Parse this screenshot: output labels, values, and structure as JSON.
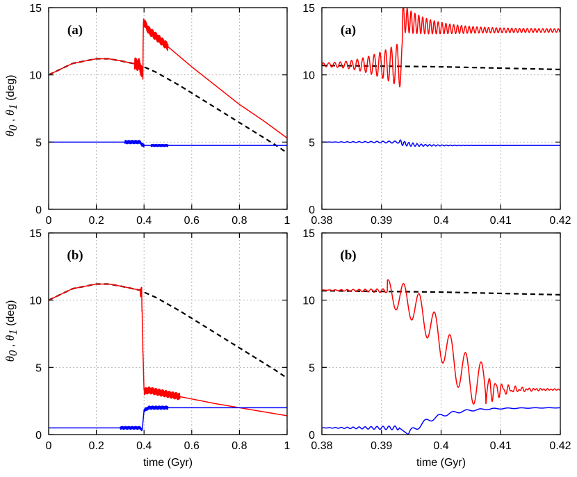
{
  "y_axis_label": {
    "theta": "θ",
    "sub0": "0",
    "sep": " , ",
    "sub1": "1",
    "unit": " (deg)"
  },
  "chart_data": [
    {
      "type": "line",
      "panel_tag": "(a)",
      "xlabel": "",
      "ylim": [
        0,
        15
      ],
      "xlim": [
        0,
        1
      ],
      "xticks": [
        "0",
        "0.2",
        "0.4",
        "0.6",
        "0.8",
        "1"
      ],
      "yticks": [
        "0",
        "5",
        "10",
        "15"
      ],
      "grid": true,
      "series": [
        {
          "color": "#000000",
          "dash": "dashed",
          "x": [
            0,
            0.1,
            0.2,
            0.25,
            0.3,
            0.38,
            0.45,
            0.55,
            0.65,
            0.75,
            0.85,
            0.95,
            1.0
          ],
          "y": [
            10.0,
            10.85,
            11.2,
            11.2,
            11.05,
            10.75,
            10.2,
            9.2,
            8.1,
            7.0,
            5.9,
            4.8,
            4.2
          ]
        },
        {
          "color": "#ff0000",
          "dash": "solid",
          "x": [
            0,
            0.1,
            0.2,
            0.25,
            0.3,
            0.38,
            0.395,
            0.397,
            0.42,
            0.5,
            0.6,
            0.7,
            0.8,
            0.9,
            1.0
          ],
          "y": [
            10.0,
            10.85,
            11.2,
            11.2,
            11.05,
            10.75,
            10.0,
            14.0,
            13.3,
            12.1,
            10.6,
            9.2,
            7.8,
            6.6,
            5.3
          ],
          "oscillate": [
            [
              0.36,
              0.396,
              0.45
            ],
            [
              0.397,
              0.5,
              0.3
            ]
          ]
        },
        {
          "color": "#0000ff",
          "dash": "solid",
          "x": [
            0,
            0.35,
            0.385,
            0.39,
            0.4,
            1.0
          ],
          "y": [
            5.0,
            5.0,
            5.0,
            4.8,
            4.75,
            4.75
          ],
          "oscillate": [
            [
              0.32,
              0.4,
              0.12
            ],
            [
              0.43,
              0.5,
              0.08
            ]
          ]
        }
      ]
    },
    {
      "type": "line",
      "panel_tag": "(a)",
      "xlabel": "",
      "ylim": [
        0,
        15
      ],
      "xlim": [
        0.38,
        0.42
      ],
      "xticks": [
        "0.38",
        "0.39",
        "0.4",
        "0.41",
        "0.42"
      ],
      "yticks": [
        "0",
        "5",
        "10",
        "15"
      ],
      "grid": true,
      "series": [
        {
          "color": "#000000",
          "dash": "dashed",
          "x": [
            0.38,
            0.39,
            0.4,
            0.41,
            0.42
          ],
          "y": [
            10.7,
            10.65,
            10.6,
            10.5,
            10.4
          ]
        },
        {
          "color": "#ff0000",
          "dash": "solid",
          "fn": "a_zoom_red"
        },
        {
          "color": "#0000ff",
          "dash": "solid",
          "fn": "a_zoom_blue"
        }
      ]
    },
    {
      "type": "line",
      "panel_tag": "(b)",
      "xlabel": "time (Gyr)",
      "ylim": [
        0,
        15
      ],
      "xlim": [
        0,
        1
      ],
      "xticks": [
        "0",
        "0.2",
        "0.4",
        "0.6",
        "0.8",
        "1"
      ],
      "yticks": [
        "0",
        "5",
        "10",
        "15"
      ],
      "grid": true,
      "series": [
        {
          "color": "#000000",
          "dash": "dashed",
          "x": [
            0,
            0.1,
            0.2,
            0.25,
            0.3,
            0.38,
            0.45,
            0.55,
            0.65,
            0.75,
            0.85,
            0.95,
            1.0
          ],
          "y": [
            10.0,
            10.85,
            11.2,
            11.2,
            11.05,
            10.75,
            10.2,
            9.2,
            8.1,
            7.0,
            5.9,
            4.8,
            4.2
          ]
        },
        {
          "color": "#ff0000",
          "dash": "solid",
          "x": [
            0,
            0.1,
            0.2,
            0.25,
            0.3,
            0.38,
            0.39,
            0.395,
            0.4,
            0.42,
            0.5,
            0.6,
            0.7,
            0.8,
            0.9,
            1.0
          ],
          "y": [
            10.0,
            10.85,
            11.2,
            11.2,
            11.05,
            10.75,
            10.6,
            6.5,
            3.2,
            3.3,
            3.0,
            2.65,
            2.3,
            2.0,
            1.7,
            1.4
          ],
          "oscillate": [
            [
              0.385,
              0.395,
              0.4
            ],
            [
              0.4,
              0.55,
              0.25
            ]
          ]
        },
        {
          "color": "#0000ff",
          "dash": "solid",
          "x": [
            0,
            0.3,
            0.385,
            0.392,
            0.4,
            0.42,
            1.0
          ],
          "y": [
            0.5,
            0.5,
            0.5,
            0.3,
            1.8,
            2.0,
            2.0
          ],
          "oscillate": [
            [
              0.3,
              0.39,
              0.1
            ],
            [
              0.4,
              0.5,
              0.12
            ]
          ]
        }
      ]
    },
    {
      "type": "line",
      "panel_tag": "(b)",
      "xlabel": "time (Gyr)",
      "ylim": [
        0,
        15
      ],
      "xlim": [
        0.38,
        0.42
      ],
      "xticks": [
        "0.38",
        "0.39",
        "0.4",
        "0.41",
        "0.42"
      ],
      "yticks": [
        "0",
        "5",
        "10",
        "15"
      ],
      "grid": true,
      "series": [
        {
          "color": "#000000",
          "dash": "dashed",
          "x": [
            0.38,
            0.39,
            0.4,
            0.41,
            0.42
          ],
          "y": [
            10.7,
            10.65,
            10.6,
            10.5,
            10.4
          ]
        },
        {
          "color": "#ff0000",
          "dash": "solid",
          "fn": "b_zoom_red"
        },
        {
          "color": "#0000ff",
          "dash": "solid",
          "fn": "b_zoom_blue"
        }
      ]
    }
  ]
}
